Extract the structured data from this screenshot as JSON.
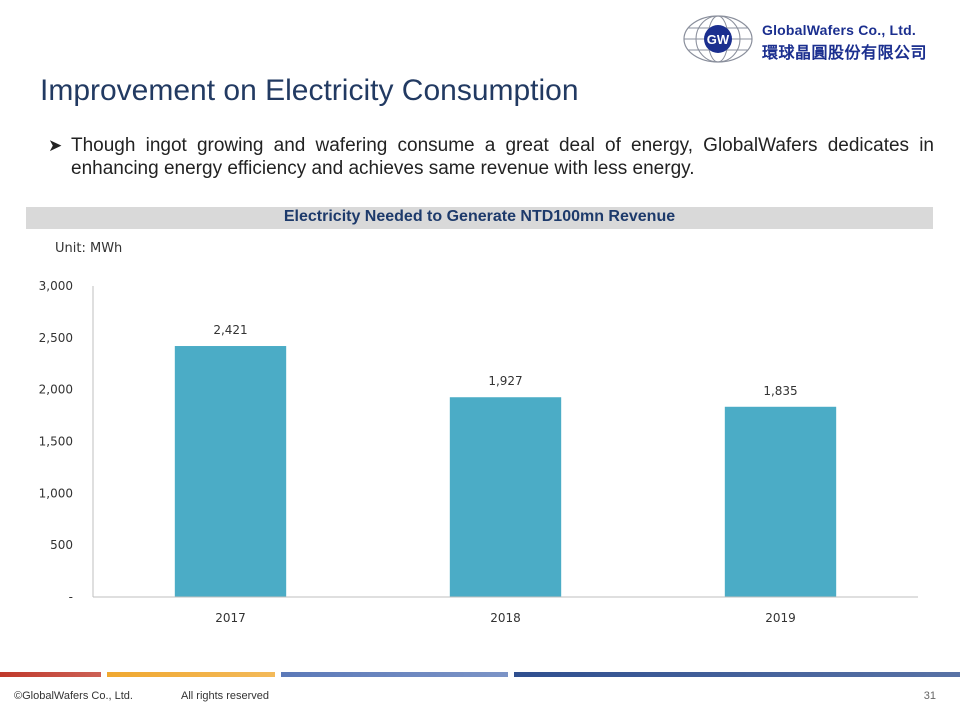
{
  "logo": {
    "mark": "GW",
    "company_en": "GlobalWafers Co., Ltd.",
    "company_zh": "環球晶圓股份有限公司"
  },
  "slide": {
    "title": "Improvement on Electricity Consumption",
    "bullet_icon": "arrow-bullet-icon",
    "bullet": "Though ingot growing and wafering consume a great deal of energy, GlobalWafers dedicates in enhancing energy efficiency and achieves same revenue with less energy."
  },
  "chart_data": {
    "type": "bar",
    "title": "Electricity Needed to Generate NTD100mn Revenue",
    "unit_label": "Unit: MWh",
    "categories": [
      "2017",
      "2018",
      "2019"
    ],
    "values": [
      2421,
      1927,
      1835
    ],
    "data_labels": [
      "2,421",
      "1,927",
      "1,835"
    ],
    "ylim": [
      0,
      3000
    ],
    "yticks": [
      0,
      500,
      1000,
      1500,
      2000,
      2500,
      3000
    ],
    "ytick_labels": [
      "-",
      "500",
      "1,000",
      "1,500",
      "2,000",
      "2,500",
      "3,000"
    ],
    "bar_color": "#4bacc6",
    "grid": false,
    "legend": "none"
  },
  "footer": {
    "copyright": "©GlobalWafers Co., Ltd.",
    "rights": "All rights reserved",
    "page_number": "31",
    "bar_colors": [
      "#c0392b",
      "#f0a830",
      "#5b79b8",
      "#2f4f8f"
    ]
  }
}
